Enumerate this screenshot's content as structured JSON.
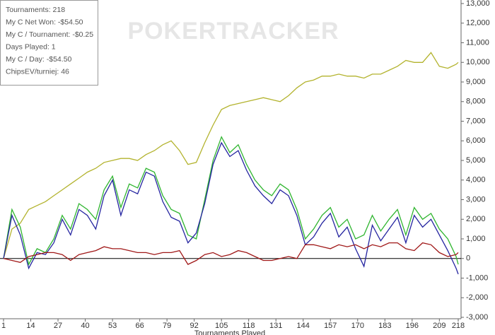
{
  "chart_data": {
    "type": "line",
    "watermark": "POKERTRACKER",
    "info": [
      "Tournaments: 218",
      "My C Net Won: -$54.50",
      "My C / Tournament: -$0.25",
      "Days Played: 1",
      "My C / Day: -$54.50",
      "ChipsEV/turniej: 46"
    ],
    "x_label": "Tournaments Played",
    "x": [
      1,
      5,
      9,
      13,
      17,
      21,
      25,
      29,
      33,
      37,
      41,
      45,
      49,
      53,
      57,
      61,
      65,
      69,
      73,
      77,
      81,
      85,
      89,
      93,
      97,
      101,
      105,
      109,
      113,
      117,
      121,
      125,
      129,
      133,
      137,
      141,
      145,
      149,
      153,
      157,
      161,
      165,
      169,
      173,
      177,
      181,
      185,
      189,
      193,
      197,
      201,
      205,
      209,
      213,
      217,
      218
    ],
    "series": [
      {
        "color": "#b3b32e",
        "values": [
          0,
          1500,
          1800,
          2500,
          2700,
          2900,
          3200,
          3500,
          3800,
          4100,
          4400,
          4600,
          4900,
          5000,
          5100,
          5100,
          5000,
          5300,
          5500,
          5800,
          6000,
          5500,
          4800,
          4900,
          5900,
          6800,
          7600,
          7800,
          7900,
          8000,
          8100,
          8200,
          8100,
          8000,
          8300,
          8700,
          9000,
          9100,
          9300,
          9300,
          9400,
          9300,
          9300,
          9200,
          9400,
          9400,
          9600,
          9800,
          10100,
          10000,
          10000,
          10500,
          9800,
          9700,
          9900,
          10000
        ]
      },
      {
        "color": "#2fb52f",
        "values": [
          0,
          2500,
          1600,
          -300,
          500,
          300,
          1000,
          2200,
          1500,
          2800,
          2500,
          2000,
          3500,
          4200,
          2600,
          3800,
          3600,
          4600,
          4400,
          3200,
          2500,
          2300,
          1200,
          1000,
          3000,
          5000,
          6200,
          5400,
          5800,
          4800,
          4000,
          3500,
          3200,
          3800,
          3500,
          2500,
          1000,
          1500,
          2200,
          2600,
          1600,
          2000,
          1000,
          1200,
          2200,
          1400,
          2000,
          2500,
          1200,
          2600,
          2000,
          2300,
          1500,
          1000,
          100,
          -300
        ]
      },
      {
        "color": "#2424a0",
        "values": [
          0,
          2200,
          1200,
          -500,
          300,
          200,
          800,
          2000,
          1200,
          2500,
          2200,
          1500,
          3200,
          4000,
          2200,
          3500,
          3300,
          4400,
          4200,
          2900,
          2100,
          1900,
          800,
          1300,
          2800,
          4800,
          5900,
          5200,
          5500,
          4500,
          3700,
          3200,
          2800,
          3500,
          3200,
          2200,
          700,
          1100,
          1800,
          2300,
          1100,
          1600,
          500,
          -400,
          1700,
          900,
          1500,
          2100,
          800,
          2200,
          1600,
          2000,
          1200,
          400,
          -500,
          -800
        ]
      },
      {
        "color": "#a01818",
        "values": [
          0,
          -100,
          -200,
          100,
          200,
          300,
          300,
          200,
          -100,
          200,
          300,
          400,
          600,
          500,
          500,
          400,
          300,
          300,
          200,
          300,
          300,
          400,
          -300,
          -100,
          200,
          300,
          100,
          200,
          400,
          300,
          100,
          -100,
          -100,
          0,
          100,
          0,
          700,
          700,
          600,
          500,
          700,
          600,
          700,
          500,
          700,
          600,
          800,
          800,
          500,
          400,
          800,
          700,
          300,
          100,
          200,
          300
        ]
      }
    ],
    "xlim": [
      1,
      218
    ],
    "xticks": [
      1,
      14,
      27,
      40,
      53,
      66,
      79,
      92,
      105,
      118,
      131,
      144,
      157,
      170,
      183,
      196,
      209,
      218
    ],
    "ylim": [
      -3000,
      13000
    ],
    "yticks": [
      {
        "value": -3000,
        "label": "-3,000"
      },
      {
        "value": -2000,
        "label": "-2,000"
      },
      {
        "value": -1000,
        "label": "-1,000"
      },
      0,
      {
        "value": 1000,
        "label": "1,000"
      },
      {
        "value": 2000,
        "label": "2,000"
      },
      {
        "value": 3000,
        "label": "3,000"
      },
      {
        "value": 4000,
        "label": "4,000"
      },
      {
        "value": 5000,
        "label": "5,000"
      },
      {
        "value": 6000,
        "label": "6,000"
      },
      {
        "value": 7000,
        "label": "7,000"
      },
      {
        "value": 8000,
        "label": "8,000"
      },
      {
        "value": 9000,
        "label": "9,000"
      },
      {
        "value": 10000,
        "label": "10,000"
      },
      {
        "value": 11000,
        "label": "11,000"
      },
      {
        "value": 12000,
        "label": "12,000"
      },
      {
        "value": 13000,
        "label": "13,000"
      }
    ],
    "y_axis_side": "right"
  }
}
